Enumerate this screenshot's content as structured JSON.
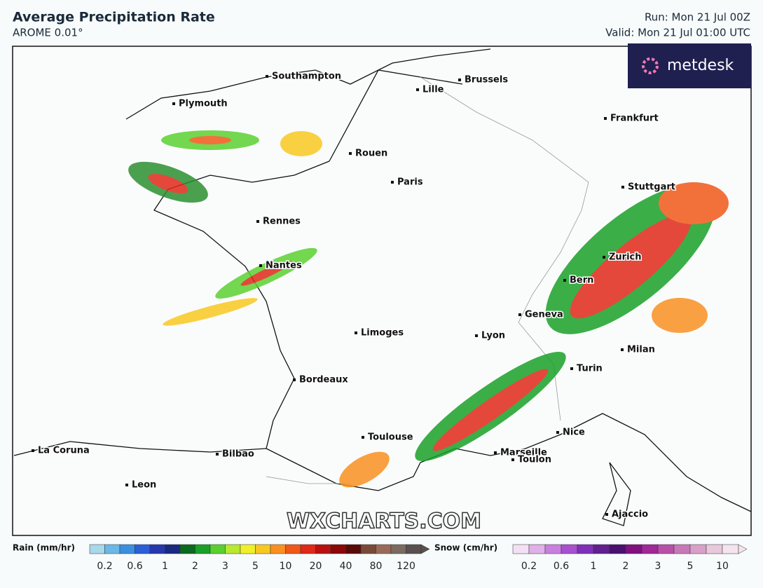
{
  "header": {
    "title": "Average Precipitation Rate",
    "subtitle": "AROME 0.01°",
    "run": "Run: Mon 21 Jul 00Z",
    "valid": "Valid: Mon 21 Jul 01:00 UTC"
  },
  "logo": "metdesk",
  "watermark": "WXCHARTS.COM",
  "cities": [
    "Southampton",
    "Plymouth",
    "Lille",
    "Brussels",
    "Frankfurt",
    "Rouen",
    "Paris",
    "Stuttgart",
    "Rennes",
    "Nantes",
    "Zurich",
    "Bern",
    "Geneva",
    "Limoges",
    "Lyon",
    "Milan",
    "Turin",
    "Bordeaux",
    "Toulouse",
    "Nice",
    "Marseille",
    "Toulon",
    "La Coruna",
    "Bilbao",
    "Leon",
    "Ajaccio"
  ],
  "legend": {
    "rain": {
      "label": "Rain (mm/hr)",
      "ticks": [
        0.2,
        0.6,
        1,
        2,
        3,
        5,
        10,
        20,
        40,
        80,
        120
      ],
      "colors": [
        "#a8d8ea",
        "#6ab8e8",
        "#3a8fe0",
        "#2a5fd8",
        "#2638b0",
        "#1a2a80",
        "#0a6a20",
        "#18a028",
        "#5ad030",
        "#b8e830",
        "#f0f028",
        "#f8c820",
        "#f89020",
        "#f05818",
        "#e02818",
        "#b81010",
        "#8a0808",
        "#5a0808",
        "#7a4a38",
        "#9a6a58",
        "#7a6a60",
        "#5a5050"
      ]
    },
    "snow": {
      "label": "Snow (cm/hr)",
      "ticks": [
        0.2,
        0.6,
        1,
        2,
        3,
        5,
        10
      ],
      "colors": [
        "#f4e0f4",
        "#e0b0e8",
        "#c880e0",
        "#a850d0",
        "#8030b8",
        "#602090",
        "#4a1070",
        "#801080",
        "#a02898",
        "#b850a8",
        "#c878b8",
        "#d8a0c8",
        "#e8c8dc",
        "#f4e4ee"
      ]
    }
  }
}
